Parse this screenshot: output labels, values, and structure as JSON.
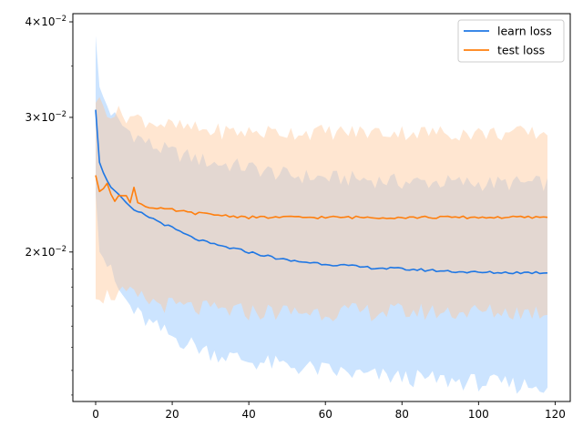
{
  "chart_data": {
    "type": "line",
    "title": "",
    "xlabel": "",
    "ylabel": "",
    "x_scale": "linear",
    "y_scale": "log",
    "xlim": [
      -5.95,
      123.95
    ],
    "ylim": [
      0.01275,
      0.041
    ],
    "x_ticks": [
      0,
      20,
      40,
      60,
      80,
      100,
      120
    ],
    "x_tick_labels": [
      "0",
      "20",
      "40",
      "60",
      "80",
      "100",
      "120"
    ],
    "y_ticks": [
      0.02,
      0.03,
      0.04
    ],
    "y_tick_labels": [
      {
        "base": "2",
        "exp": "−2"
      },
      {
        "base": "3",
        "exp": "−2"
      },
      {
        "base": "4",
        "exp": "−2"
      }
    ],
    "grid": false,
    "legend_position": "top-right",
    "x": {
      "start": 0,
      "end": 118,
      "step": 1
    },
    "series": [
      {
        "name": "learn loss",
        "color": "#1f77e4",
        "band_color": "#8fc3ff",
        "mean_knots": [
          [
            0,
            0.0307
          ],
          [
            1,
            0.0262
          ],
          [
            2,
            0.0254
          ],
          [
            3,
            0.0248
          ],
          [
            4,
            0.0243
          ],
          [
            6,
            0.0238
          ],
          [
            8,
            0.0232
          ],
          [
            10,
            0.0227
          ],
          [
            15,
            0.0221
          ],
          [
            20,
            0.0215
          ],
          [
            25,
            0.0209
          ],
          [
            30,
            0.0205
          ],
          [
            40,
            0.02
          ],
          [
            50,
            0.0195
          ],
          [
            60,
            0.0193
          ],
          [
            70,
            0.0191
          ],
          [
            80,
            0.019
          ],
          [
            90,
            0.0189
          ],
          [
            100,
            0.0188
          ],
          [
            110,
            0.0188
          ],
          [
            118,
            0.0188
          ]
        ],
        "upper_knots": [
          [
            0,
            0.039
          ],
          [
            1,
            0.0325
          ],
          [
            2,
            0.0318
          ],
          [
            4,
            0.0305
          ],
          [
            6,
            0.0295
          ],
          [
            10,
            0.0285
          ],
          [
            15,
            0.0275
          ],
          [
            20,
            0.027
          ],
          [
            30,
            0.0262
          ],
          [
            40,
            0.0258
          ],
          [
            50,
            0.0252
          ],
          [
            60,
            0.025
          ],
          [
            70,
            0.0249
          ],
          [
            80,
            0.0247
          ],
          [
            90,
            0.0247
          ],
          [
            100,
            0.0246
          ],
          [
            110,
            0.0246
          ],
          [
            118,
            0.0246
          ]
        ],
        "lower_knots": [
          [
            0,
            0.0245
          ],
          [
            1,
            0.0205
          ],
          [
            2,
            0.0198
          ],
          [
            4,
            0.0188
          ],
          [
            6,
            0.0178
          ],
          [
            10,
            0.0167
          ],
          [
            15,
            0.016
          ],
          [
            20,
            0.0155
          ],
          [
            30,
            0.0148
          ],
          [
            40,
            0.0144
          ],
          [
            50,
            0.0142
          ],
          [
            60,
            0.014
          ],
          [
            70,
            0.0138
          ],
          [
            80,
            0.0137
          ],
          [
            90,
            0.0136
          ],
          [
            100,
            0.0135
          ],
          [
            110,
            0.0134
          ],
          [
            118,
            0.0134
          ]
        ]
      },
      {
        "name": "test loss",
        "color": "#ff7f0e",
        "band_color": "#ffc89a",
        "mean_knots": [
          [
            0,
            0.0252
          ],
          [
            1,
            0.024
          ],
          [
            2,
            0.0242
          ],
          [
            3,
            0.0246
          ],
          [
            4,
            0.0238
          ],
          [
            5,
            0.0233
          ],
          [
            6,
            0.0237
          ],
          [
            8,
            0.0237
          ],
          [
            9,
            0.0232
          ],
          [
            10,
            0.0243
          ],
          [
            11,
            0.0232
          ],
          [
            15,
            0.0228
          ],
          [
            20,
            0.0227
          ],
          [
            25,
            0.0225
          ],
          [
            30,
            0.0224
          ],
          [
            40,
            0.0222
          ],
          [
            50,
            0.0222
          ],
          [
            60,
            0.0222
          ],
          [
            70,
            0.0222
          ],
          [
            80,
            0.0222
          ],
          [
            90,
            0.0222
          ],
          [
            100,
            0.0222
          ],
          [
            110,
            0.0222
          ],
          [
            118,
            0.0222
          ]
        ],
        "upper_knots": [
          [
            0,
            0.0318
          ],
          [
            2,
            0.031
          ],
          [
            4,
            0.0305
          ],
          [
            8,
            0.0302
          ],
          [
            10,
            0.03
          ],
          [
            15,
            0.0296
          ],
          [
            20,
            0.0292
          ],
          [
            30,
            0.0288
          ],
          [
            40,
            0.0287
          ],
          [
            60,
            0.0287
          ],
          [
            80,
            0.0287
          ],
          [
            100,
            0.0286
          ],
          [
            118,
            0.0286
          ]
        ],
        "lower_knots": [
          [
            0,
            0.0178
          ],
          [
            2,
            0.0175
          ],
          [
            4,
            0.0176
          ],
          [
            8,
            0.0176
          ],
          [
            10,
            0.0175
          ],
          [
            15,
            0.0172
          ],
          [
            20,
            0.017
          ],
          [
            30,
            0.0168
          ],
          [
            40,
            0.0167
          ],
          [
            60,
            0.0167
          ],
          [
            80,
            0.0167
          ],
          [
            100,
            0.0167
          ],
          [
            118,
            0.0167
          ]
        ]
      }
    ]
  }
}
